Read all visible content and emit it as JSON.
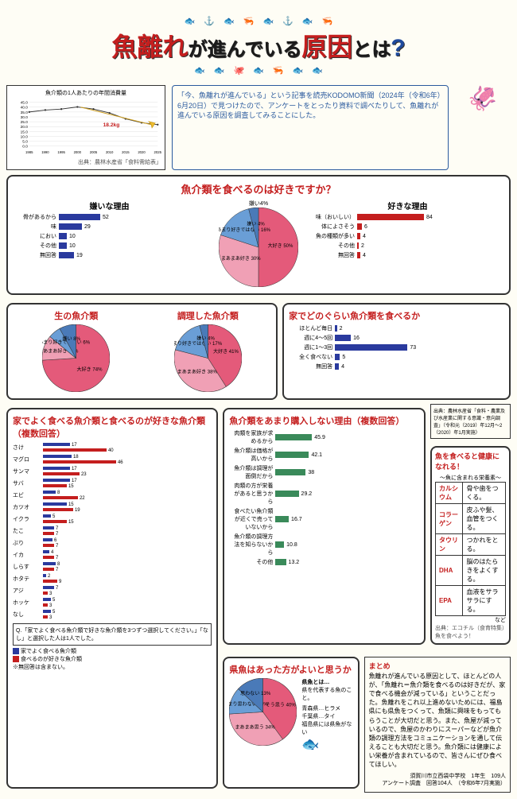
{
  "title": {
    "p1": "魚離れ",
    "p2": "が進んでいる",
    "p3": "原因",
    "p4": "とは",
    "q": "?"
  },
  "intro_text": "「今、魚離れが進んでいる」という記事を読売KODOMO新聞（2024年（令和6年）6月20日）で見つけたので、アンケートをとったり資料で調べたりして、魚離れが進んでいる原因を調査してみることにした。",
  "line_chart": {
    "title": "魚介類の1人あたりの年間消費量",
    "x": [
      1985,
      1990,
      1995,
      2000,
      2005,
      2010,
      2015,
      2020,
      2025
    ],
    "y_points": [
      35,
      37,
      38,
      40.2,
      38,
      34,
      28,
      24,
      22
    ],
    "peak_label": "←ピーク",
    "peak_val_label": "ピーク（2001年）から 18.2kg 減少",
    "unit": "(kg)",
    "ylim": [
      0,
      45
    ],
    "ytick": 5,
    "source": "出典：農林水産省「食料需給表」"
  },
  "sec1": {
    "title": "魚介類を食べるのは好きですか？",
    "center_pie": {
      "slices": [
        {
          "label": "大好き",
          "pct": 50,
          "color": "#e45a7a"
        },
        {
          "label": "まあまあ好き",
          "pct": 30,
          "color": "#f0a0b5"
        },
        {
          "label": "あまり好きではない",
          "pct": 16,
          "color": "#6a9ed6"
        },
        {
          "label": "嫌い",
          "pct": 4,
          "color": "#4a7ab8"
        }
      ],
      "dislike_label": "嫌い4%"
    },
    "dislike_title": "嫌いな理由",
    "dislike_scale": "(%)",
    "dislike_max": 100,
    "dislike_bars": [
      {
        "label": "骨があるから",
        "val": 52
      },
      {
        "label": "味",
        "val": 29
      },
      {
        "label": "におい",
        "val": 10
      },
      {
        "label": "その他",
        "val": 10
      },
      {
        "label": "無回答",
        "val": 19
      }
    ],
    "like_title": "好きな理由",
    "like_scale": "(%)",
    "like_max": 100,
    "like_bars": [
      {
        "label": "味（おいしい）",
        "val": 84
      },
      {
        "label": "体によさそう",
        "val": 6
      },
      {
        "label": "魚の種類が多い",
        "val": 4
      },
      {
        "label": "その他",
        "val": 2
      },
      {
        "label": "無回答",
        "val": 4
      }
    ]
  },
  "sec2": {
    "left_title": "生の魚介類",
    "left_pie": [
      {
        "label": "大好き",
        "pct": 74,
        "color": "#e45a7a"
      },
      {
        "label": "まあまあ好き",
        "pct": 12,
        "color": "#f0a0b5"
      },
      {
        "label": "あまり好きではない",
        "pct": 6,
        "color": "#6a9ed6"
      },
      {
        "label": "嫌い",
        "pct": 8,
        "color": "#4a7ab8"
      }
    ],
    "right_title": "調理した魚介類",
    "right_pie": [
      {
        "label": "大好き",
        "pct": 41,
        "color": "#e45a7a"
      },
      {
        "label": "まあまあ好き",
        "pct": 38,
        "color": "#f0a0b5"
      },
      {
        "label": "あまり好きではない",
        "pct": 17,
        "color": "#6a9ed6"
      },
      {
        "label": "嫌い",
        "pct": 4,
        "color": "#4a7ab8"
      }
    ],
    "freq_title": "家でどのぐらい魚介類を食べるか",
    "freq_scale": "(%)",
    "freq_max": 80,
    "freq_bars": [
      {
        "label": "ほとんど毎日",
        "val": 2
      },
      {
        "label": "週に4～5回",
        "val": 16
      },
      {
        "label": "週に1～3回",
        "val": 73
      },
      {
        "label": "全く食べない",
        "val": 5
      },
      {
        "label": "無回答",
        "val": 4
      }
    ]
  },
  "sec3": {
    "left_title": "家でよく食べる魚介類と食べるのが好きな魚介類（複数回答）",
    "left_scale": "(%)",
    "left_max": 50,
    "left_bars": [
      {
        "label": "さけ",
        "b": 17,
        "r": 40
      },
      {
        "label": "マグロ",
        "b": 18,
        "r": 46
      },
      {
        "label": "サンマ",
        "b": 17,
        "r": 23
      },
      {
        "label": "サバ",
        "b": 17,
        "r": 15
      },
      {
        "label": "エビ",
        "b": 8,
        "r": 22
      },
      {
        "label": "カツオ",
        "b": 15,
        "r": 19
      },
      {
        "label": "イクラ",
        "b": 5,
        "r": 15
      },
      {
        "label": "たこ",
        "b": 7,
        "r": 7
      },
      {
        "label": "ぶり",
        "b": 6,
        "r": 7
      },
      {
        "label": "イカ",
        "b": 4,
        "r": 7
      },
      {
        "label": "しらす",
        "b": 8,
        "r": 7
      },
      {
        "label": "ホタテ",
        "b": 2,
        "r": 9
      },
      {
        "label": "アジ",
        "b": 7,
        "r": 3
      },
      {
        "label": "ホッケ",
        "b": 5,
        "r": 3
      },
      {
        "label": "なし",
        "b": 5,
        "r": 3
      }
    ],
    "left_legend_b": "家でよく食べる魚介類",
    "left_legend_r": "食べるのが好きな魚介類",
    "left_note": "Q.「家でよく食べる魚介類で好きな魚介類を3つずつ選択してください。」「なし」と選択した人は1人でした。",
    "left_note2": "※無回答は含まない。"
  },
  "sec4": {
    "title": "魚介類をあまり購入しない理由（複数回答）",
    "scale": "(%)",
    "max": 100,
    "bars": [
      {
        "label": "肉類を家族が求めるから",
        "val": 45.9
      },
      {
        "label": "魚介類は価格が高いから",
        "val": 42.1
      },
      {
        "label": "魚介類は調理が面倒だから",
        "val": 38.0
      },
      {
        "label": "肉類の方が栄養があると思うから",
        "val": 29.2
      },
      {
        "label": "食べたい魚介類が近くで売っていないから",
        "val": 16.7
      },
      {
        "label": "魚介類の調理方法を知らないから",
        "val": 10.8
      },
      {
        "label": "その他",
        "val": 13.2
      }
    ],
    "source": "出典：農林水産省「食料・農業及び水産業に関する意識・意向調査」（令和元（2019）年12月～2（2020）年1月実施）"
  },
  "sec5": {
    "title": "県魚はあった方がよいと思うか",
    "pie": [
      {
        "label": "そう思う",
        "pct": 40,
        "color": "#e45a7a"
      },
      {
        "label": "まあまあ思う",
        "pct": 34,
        "color": "#f0a0b5"
      },
      {
        "label": "あまり思わない",
        "pct": 13,
        "color": "#6a9ed6"
      },
      {
        "label": "思わない",
        "pct": 13,
        "color": "#4a7ab8"
      }
    ],
    "side_title": "県魚とは…",
    "side_text": "県を代表する魚のこと。",
    "examples": "青森県…ヒラメ\n千葉県…タイ\n福島県には県魚がない"
  },
  "sec6": {
    "title": "魚を食べると健康になれる！",
    "sub": "〜魚に含まれる栄養素〜",
    "rows": [
      {
        "n": "カルシウム",
        "d": "骨や歯をつくる。"
      },
      {
        "n": "コラーゲン",
        "d": "皮ふや髪、血管をつくる。"
      },
      {
        "n": "タウリン",
        "d": "つかれをとる。"
      },
      {
        "n": "DHA",
        "d": "脳のはたらきをよくする。"
      },
      {
        "n": "EPA",
        "d": "血液をサラサラにする。"
      }
    ],
    "etc": "など",
    "source": "出典：エコチル（食育特集）魚を食べよう！"
  },
  "summary": {
    "title": "まとめ",
    "text": "魚離れが進んでいる原因として、ほとんどの人が、「魚離れ＝魚介類を食べるのは好きだが、家で食べる機会が減っている」ということだった。魚離れをこれ以上進めないためには、福島県にも県魚をつくって、魚類に興味をもってもらうことが大切だと思う。また、魚屋が減っているので、魚屋のかわりにスーパーなどが魚介類の調理方法をコミュニケーションを通して伝えることも大切だと思う。魚介類には健康によい栄養が含まれているので、皆さんにぜひ食べてほしい。"
  },
  "footer": "須賀川市立西袋中学校　1年生　109人\nアンケート調査　回答104人　（令和6年7月実施）"
}
